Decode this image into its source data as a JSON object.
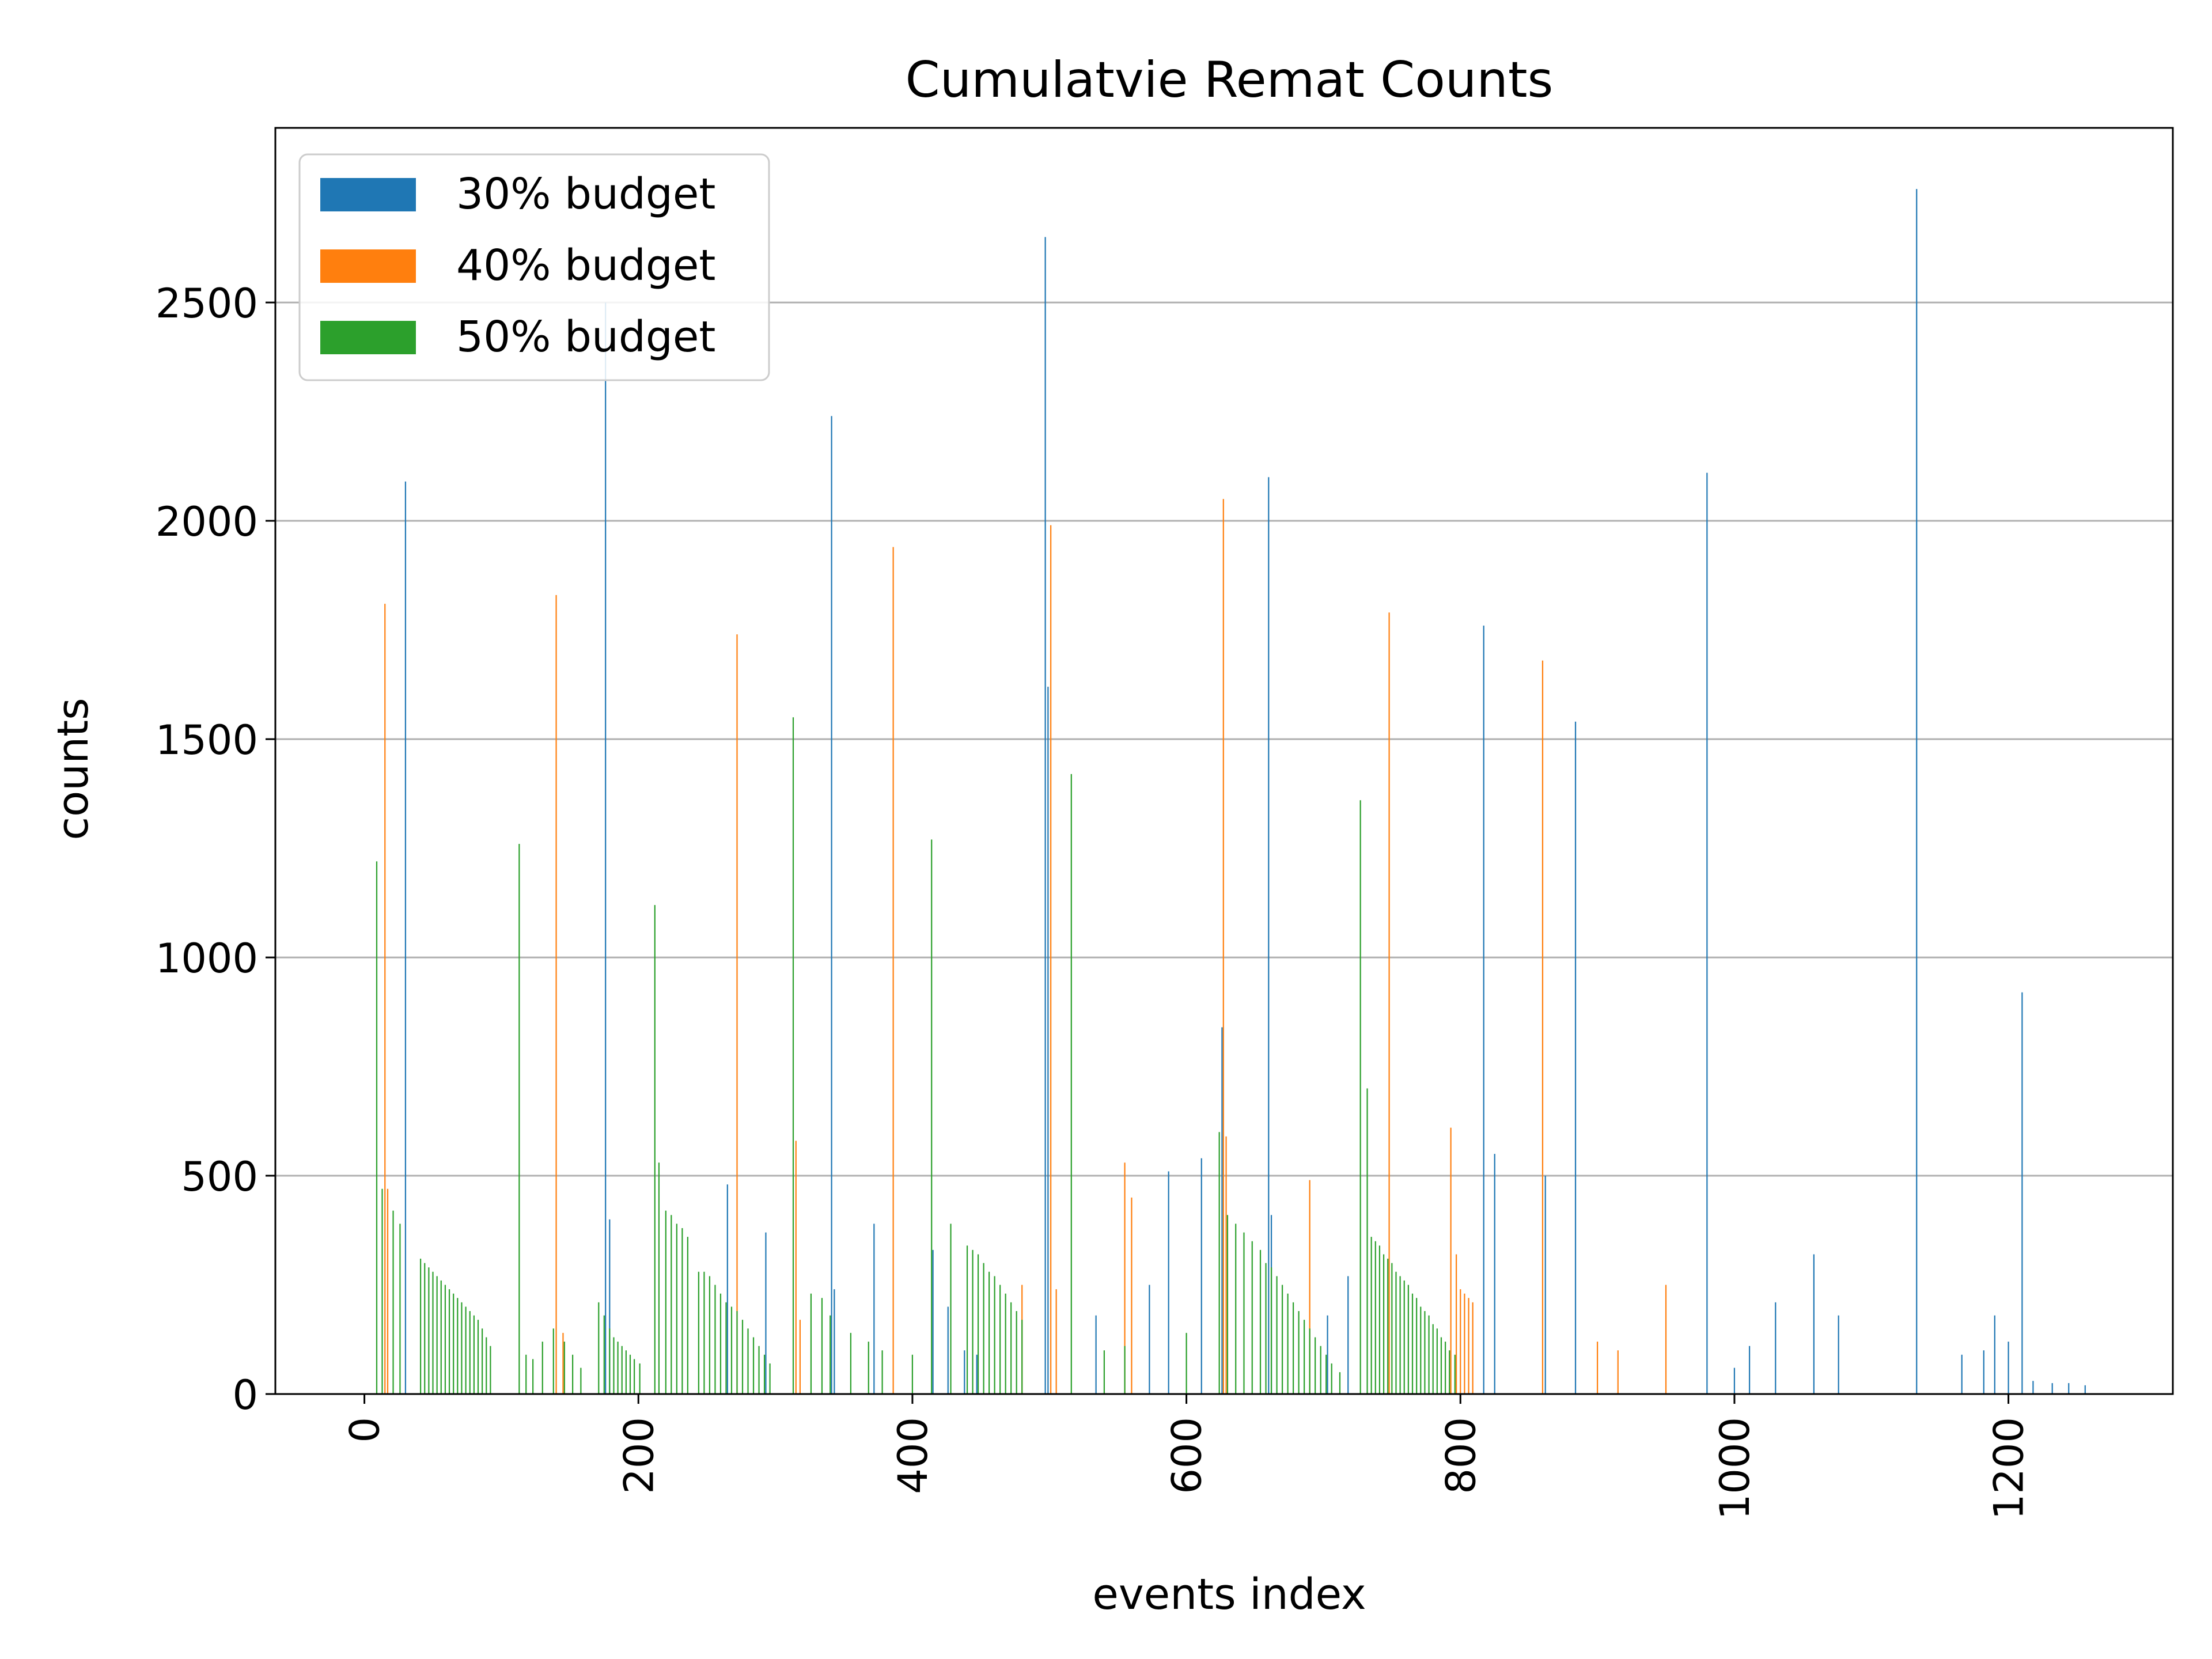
{
  "chart_data": {
    "type": "bar",
    "title": "Cumulatvie Remat Counts",
    "xlabel": "events index",
    "ylabel": "counts",
    "xlim": [
      -65,
      1320
    ],
    "ylim": [
      0,
      2900
    ],
    "xticks": [
      "0",
      "200",
      "400",
      "600",
      "800",
      "1000",
      "1200"
    ],
    "yticks": [
      "0",
      "500",
      "1000",
      "1500",
      "2000",
      "2500"
    ],
    "grid": "horizontal",
    "legend_position": "top-left",
    "series": [
      {
        "name": "30% budget",
        "color": "#1f77b4",
        "x": [
          30,
          176,
          179,
          265,
          293,
          341,
          343,
          372,
          415,
          426,
          438,
          447,
          497,
          499,
          534,
          573,
          587,
          611,
          626,
          660,
          662,
          703,
          718,
          817,
          825,
          862,
          884,
          980,
          1000,
          1011,
          1030,
          1058,
          1076,
          1133,
          1166,
          1182,
          1190,
          1200,
          1210,
          1218,
          1232,
          1244,
          1256
        ],
        "values": [
          2090,
          2500,
          400,
          480,
          370,
          2240,
          240,
          390,
          330,
          200,
          100,
          90,
          2650,
          1620,
          180,
          250,
          510,
          540,
          840,
          2100,
          410,
          180,
          270,
          1760,
          550,
          500,
          1540,
          2110,
          60,
          110,
          210,
          320,
          180,
          2760,
          90,
          100,
          180,
          120,
          920,
          30,
          25,
          25,
          20
        ]
      },
      {
        "name": "40% budget",
        "color": "#ff7f0e",
        "x": [
          15,
          17,
          140,
          145,
          272,
          315,
          318,
          386,
          480,
          501,
          505,
          555,
          560,
          627,
          629,
          690,
          748,
          793,
          797,
          800,
          803,
          806,
          809,
          860,
          900,
          915,
          950
        ],
        "values": [
          1810,
          470,
          1830,
          140,
          1740,
          580,
          170,
          1940,
          250,
          1990,
          240,
          530,
          450,
          2050,
          590,
          490,
          1790,
          610,
          320,
          240,
          230,
          220,
          210,
          1680,
          120,
          100,
          250
        ]
      },
      {
        "name": "50% budget",
        "color": "#2ca02c",
        "x": [
          9,
          13,
          21,
          26,
          41,
          44,
          47,
          50,
          53,
          56,
          59,
          62,
          65,
          68,
          71,
          74,
          77,
          80,
          83,
          86,
          89,
          92,
          113,
          118,
          123,
          130,
          138,
          146,
          152,
          158,
          171,
          175,
          179,
          182,
          185,
          188,
          191,
          194,
          197,
          201,
          212,
          215,
          220,
          224,
          228,
          232,
          236,
          244,
          248,
          252,
          256,
          260,
          264,
          268,
          272,
          276,
          280,
          284,
          288,
          292,
          296,
          313,
          326,
          334,
          340,
          355,
          368,
          378,
          400,
          414,
          428,
          440,
          444,
          448,
          452,
          456,
          460,
          464,
          468,
          472,
          476,
          480,
          516,
          540,
          555,
          600,
          624,
          630,
          636,
          642,
          648,
          654,
          658,
          662,
          666,
          670,
          674,
          678,
          682,
          686,
          690,
          694,
          698,
          702,
          706,
          712,
          727,
          732,
          735,
          738,
          741,
          744,
          747,
          750,
          753,
          756,
          759,
          762,
          765,
          768,
          771,
          774,
          777,
          780,
          783,
          786,
          789,
          792,
          796
        ],
        "values": [
          1220,
          470,
          420,
          390,
          310,
          300,
          290,
          280,
          270,
          260,
          250,
          240,
          230,
          220,
          210,
          200,
          190,
          180,
          170,
          150,
          130,
          110,
          1260,
          90,
          80,
          120,
          150,
          120,
          90,
          60,
          210,
          180,
          150,
          130,
          120,
          110,
          100,
          90,
          80,
          70,
          1120,
          530,
          420,
          410,
          390,
          380,
          360,
          280,
          280,
          270,
          250,
          230,
          210,
          200,
          190,
          170,
          150,
          130,
          110,
          90,
          70,
          1550,
          230,
          220,
          180,
          140,
          120,
          100,
          90,
          1270,
          390,
          340,
          330,
          320,
          300,
          280,
          270,
          250,
          230,
          210,
          190,
          170,
          1420,
          100,
          110,
          140,
          600,
          410,
          390,
          370,
          350,
          330,
          300,
          290,
          270,
          250,
          230,
          210,
          190,
          170,
          150,
          130,
          110,
          90,
          70,
          50,
          1360,
          700,
          360,
          350,
          340,
          320,
          310,
          300,
          280,
          270,
          260,
          250,
          230,
          220,
          200,
          190,
          180,
          160,
          150,
          130,
          120,
          100,
          90
        ]
      }
    ]
  }
}
